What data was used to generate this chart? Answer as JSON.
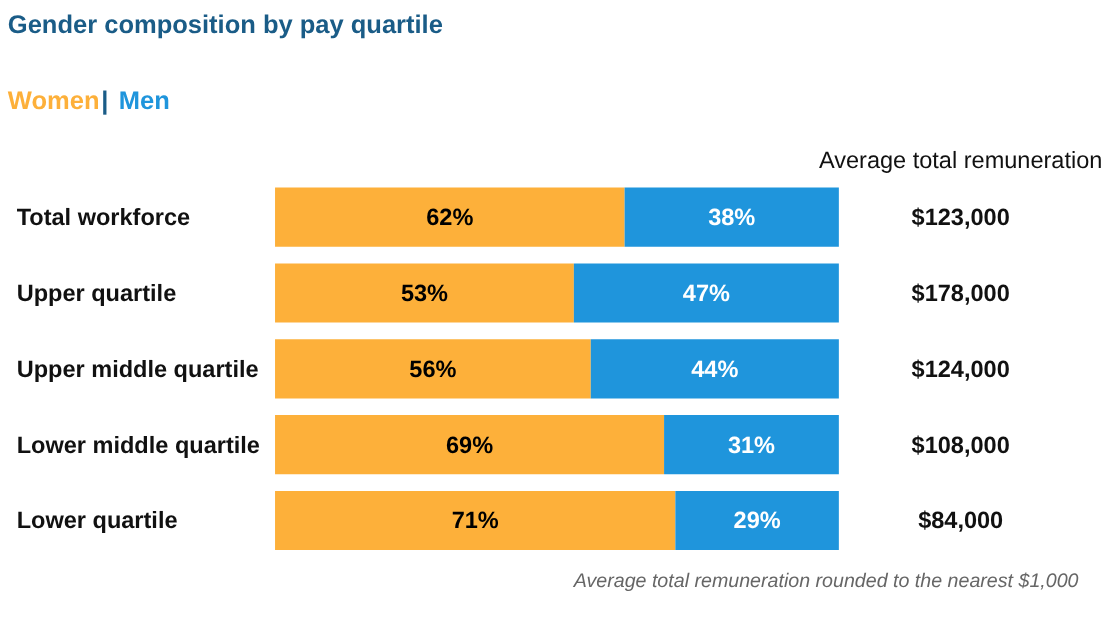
{
  "chart_data": {
    "type": "bar",
    "orientation": "horizontal",
    "stacked": true,
    "title": "Gender composition by pay quartile",
    "legend": "top left",
    "grid": false,
    "tick_labels": "y",
    "categories": [
      "Total workforce",
      "Upper quartile",
      "Upper middle quartile",
      "Lower middle quartile",
      "Lower quartile"
    ],
    "series": [
      {
        "name": "Women",
        "color": "#fdb03a",
        "values": [
          62,
          53,
          56,
          69,
          71
        ],
        "value_labels": [
          "62%",
          "53%",
          "56%",
          "69%",
          "71%"
        ]
      },
      {
        "name": "Men",
        "color": "#1f95dc",
        "values": [
          38,
          47,
          44,
          31,
          29
        ],
        "value_labels": [
          "38%",
          "47%",
          "44%",
          "31%",
          "29%"
        ]
      }
    ],
    "annotations": [
      "|",
      "Average total remuneration",
      "$123,000",
      "$178,000",
      "$124,000",
      "$108,000",
      "$84,000",
      "Average total remuneration rounded to the nearest $1,000"
    ]
  }
}
